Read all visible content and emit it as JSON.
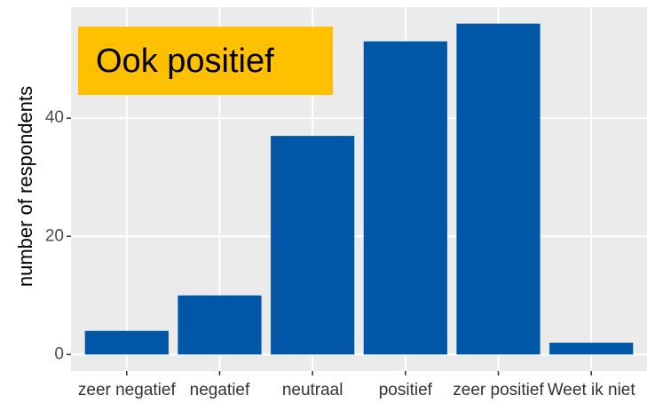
{
  "chart_data": {
    "type": "bar",
    "y_label": "number of respondents",
    "annotation": "Ook positief",
    "categories": [
      "zeer negatief",
      "negatief",
      "neutraal",
      "positief",
      "zeer positief",
      "Weet ik niet"
    ],
    "values": [
      4,
      10,
      37,
      53,
      56,
      2
    ],
    "color": "#0057a8",
    "annotation_color": "#ffc000",
    "panel_color": "#ebebeb",
    "ylim": [
      -2.8,
      58.8
    ],
    "yticks": [
      0,
      20,
      40
    ],
    "grid": true
  }
}
